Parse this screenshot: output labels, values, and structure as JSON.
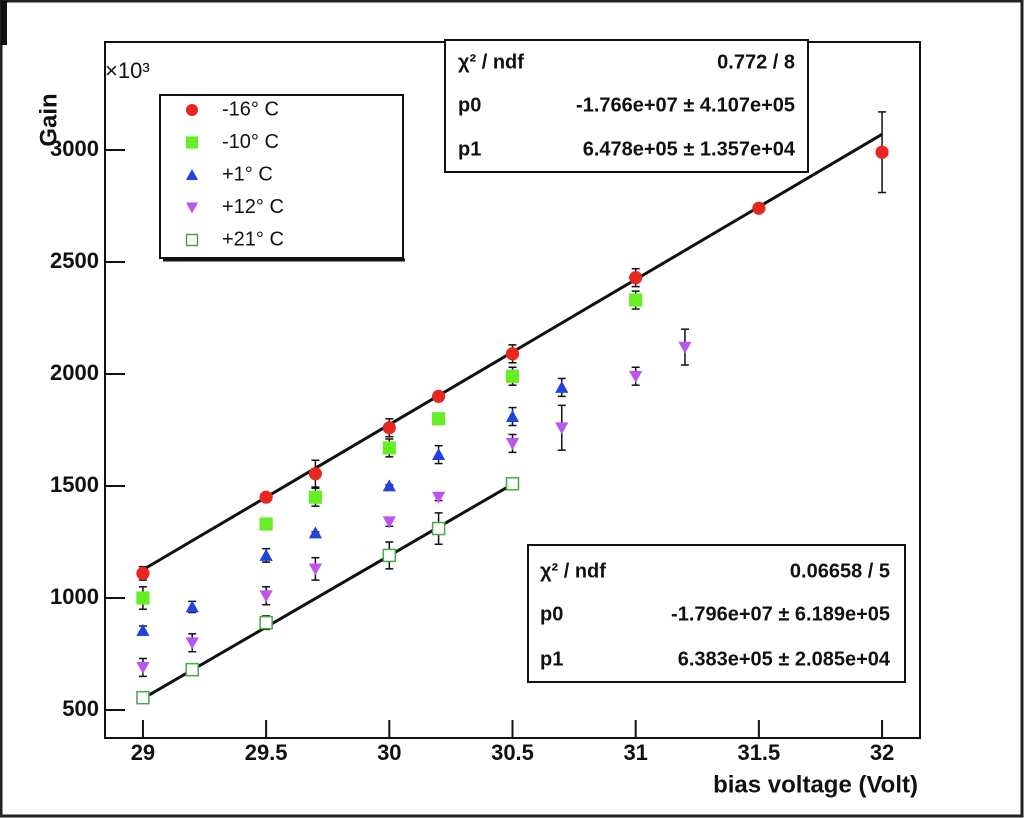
{
  "chart_data": {
    "type": "scatter",
    "multiplier": "×10³",
    "y_label": "Gain",
    "x_label": "bias voltage (Volt)",
    "xlim": [
      28.846,
      32.154
    ],
    "ylim": [
      375,
      3482
    ],
    "xticks": [
      29,
      29.5,
      30,
      30.5,
      31,
      31.5,
      32
    ],
    "yticks": [
      500,
      1000,
      1500,
      2000,
      2500,
      3000
    ],
    "series": [
      {
        "name": "-16° C",
        "color": "#e8281e",
        "marker": "circle",
        "x": [
          29,
          29.5,
          29.7,
          30,
          30.2,
          30.5,
          31,
          31.5,
          32
        ],
        "values": [
          1110,
          1450,
          1555,
          1760,
          1900,
          2090,
          2430,
          2740,
          2990
        ],
        "errors": [
          30,
          10,
          60,
          40,
          20,
          40,
          40,
          20,
          180
        ]
      },
      {
        "name": "-10° C",
        "color": "#66ee22",
        "marker": "square",
        "x": [
          29,
          29.5,
          29.7,
          30,
          30.2,
          30.5,
          31
        ],
        "values": [
          1000,
          1330,
          1450,
          1670,
          1800,
          1990,
          2330
        ],
        "errors": [
          50,
          20,
          40,
          40,
          20,
          40,
          40
        ]
      },
      {
        "name": "+1° C",
        "color": "#2244dd",
        "marker": "triangle-up",
        "x": [
          29,
          29.2,
          29.5,
          29.7,
          30,
          30.2,
          30.5,
          30.7
        ],
        "values": [
          855,
          960,
          1190,
          1290,
          1500,
          1640,
          1810,
          1940
        ],
        "errors": [
          20,
          25,
          30,
          5,
          5,
          40,
          40,
          40
        ]
      },
      {
        "name": "+12° C",
        "color": "#bb55ee",
        "marker": "triangle-down",
        "x": [
          29,
          29.2,
          29.5,
          29.7,
          30,
          30.2,
          30.5,
          30.7,
          31,
          31.2
        ],
        "values": [
          690,
          800,
          1010,
          1130,
          1340,
          1450,
          1690,
          1760,
          1990,
          2120
        ],
        "errors": [
          40,
          40,
          40,
          50,
          20,
          15,
          40,
          100,
          40,
          80
        ]
      },
      {
        "name": "+21° C",
        "color": "#44aa44",
        "marker": "square-open",
        "x": [
          29,
          29.2,
          29.5,
          30,
          30.2,
          30.5
        ],
        "values": [
          555,
          680,
          890,
          1190,
          1310,
          1510
        ],
        "errors": [
          10,
          20,
          30,
          60,
          70,
          20
        ]
      }
    ],
    "fits": [
      {
        "x": [
          29,
          32
        ],
        "y": [
          1126,
          3070
        ]
      },
      {
        "x": [
          29,
          30.5
        ],
        "y": [
          551,
          1508
        ]
      }
    ],
    "stat_boxes": [
      {
        "rows": [
          {
            "label": "χ² / ndf",
            "value": "0.772 / 8"
          },
          {
            "label": "p0",
            "value": "-1.766e+07 ± 4.107e+05"
          },
          {
            "label": "p1",
            "value": "6.478e+05 ± 1.357e+04"
          }
        ]
      },
      {
        "rows": [
          {
            "label": "χ² / ndf",
            "value": "0.06658 / 5"
          },
          {
            "label": "p0",
            "value": "-1.796e+07 ± 6.189e+05"
          },
          {
            "label": "p1",
            "value": "6.383e+05 ± 2.085e+04"
          }
        ]
      }
    ]
  }
}
